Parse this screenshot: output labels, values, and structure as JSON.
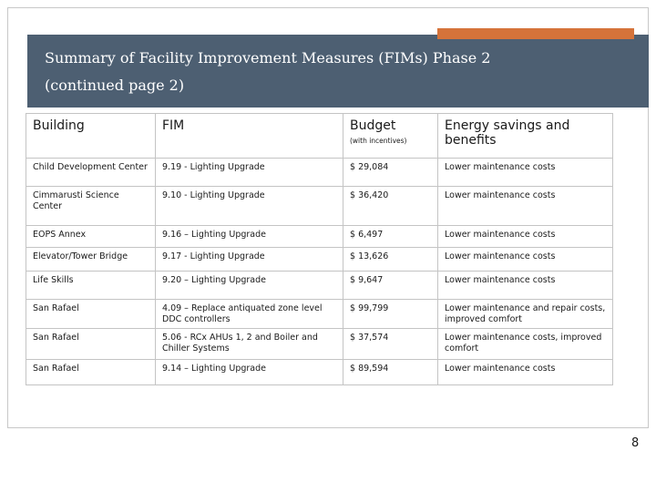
{
  "title": {
    "line1": "Summary of Facility Improvement Measures (FIMs) Phase 2",
    "line2": "(continued page 2)"
  },
  "table": {
    "headers": {
      "building": "Building",
      "fim": "FIM",
      "budget": "Budget",
      "budget_note": "(with incentives)",
      "benefits": "Energy savings and benefits"
    },
    "rows": [
      {
        "building": "Child Development Center",
        "fim": "9.19 - Lighting Upgrade",
        "budget": "$ 29,084",
        "benefits": "Lower maintenance costs"
      },
      {
        "building": "Cimmarusti Science Center",
        "fim": "9.10 - Lighting Upgrade",
        "budget": "$ 36,420",
        "benefits": "Lower maintenance costs"
      },
      {
        "building": "EOPS Annex",
        "fim": "9.16 – Lighting Upgrade",
        "budget": "$ 6,497",
        "benefits": "Lower maintenance costs"
      },
      {
        "building": "Elevator/Tower Bridge",
        "fim": "9.17 - Lighting Upgrade",
        "budget": "$ 13,626",
        "benefits": "Lower maintenance costs"
      },
      {
        "building": "Life Skills",
        "fim": "9.20 – Lighting Upgrade",
        "budget": "$ 9,647",
        "benefits": "Lower maintenance costs"
      },
      {
        "building": "San Rafael",
        "fim": "4.09 – Replace antiquated zone level DDC controllers",
        "budget": "$ 99,799",
        "benefits": "Lower maintenance and repair costs, improved comfort"
      },
      {
        "building": "San Rafael",
        "fim": "5.06 - RCx AHUs 1, 2 and Boiler and Chiller Systems",
        "budget": "$ 37,574",
        "benefits": "Lower maintenance costs, improved comfort"
      },
      {
        "building": "San Rafael",
        "fim": "9.14 – Lighting Upgrade",
        "budget": "$ 89,594",
        "benefits": "Lower maintenance costs"
      }
    ]
  },
  "page_number": "8",
  "colors": {
    "header_band": "#4d5f72",
    "accent": "#d5733a"
  }
}
